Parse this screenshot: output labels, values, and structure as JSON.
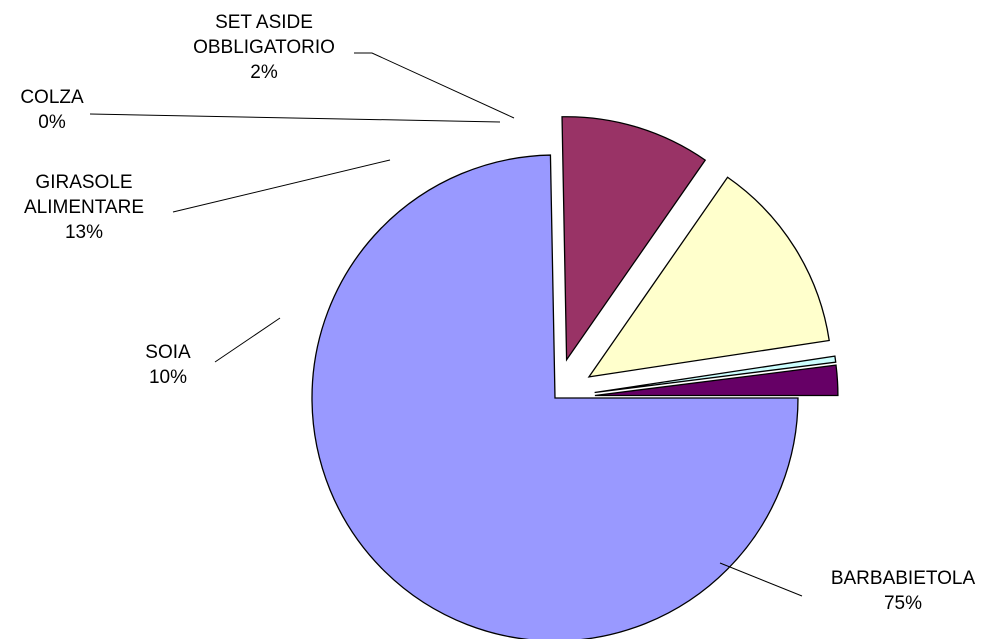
{
  "chart_data": {
    "type": "pie",
    "title": "",
    "exploded": true,
    "slices": [
      {
        "name": "BARBABIETOLA",
        "lines": [
          "BARBABIETOLA"
        ],
        "percent_label": "75%",
        "value": 75,
        "color": "#9999ff"
      },
      {
        "name": "SOIA",
        "lines": [
          "SOIA"
        ],
        "percent_label": "10%",
        "value": 10,
        "color": "#993366"
      },
      {
        "name": "GIRASOLE ALIMENTARE",
        "lines": [
          "GIRASOLE",
          "ALIMENTARE"
        ],
        "percent_label": "13%",
        "value": 13,
        "color": "#ffffcc"
      },
      {
        "name": "COLZA",
        "lines": [
          "COLZA"
        ],
        "percent_label": "0%",
        "value": 0.4,
        "color": "#ccffff"
      },
      {
        "name": "SET ASIDE OBBLIGATORIO",
        "lines": [
          "SET ASIDE",
          "OBBLIGATORIO"
        ],
        "percent_label": "2%",
        "value": 2,
        "color": "#660066"
      }
    ]
  }
}
